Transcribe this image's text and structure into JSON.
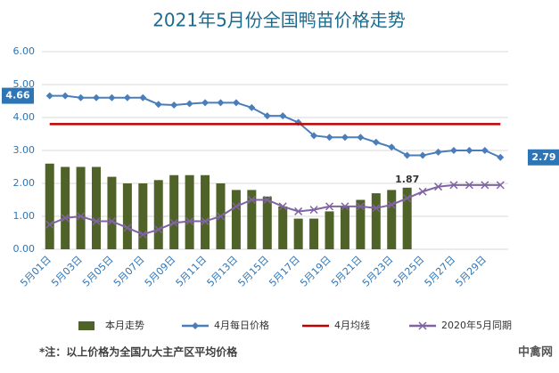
{
  "chart_data": {
    "type": "combo",
    "title": "2021年5月份全国鸭苗价格走势",
    "categories": [
      "5月01日",
      null,
      "5月03日",
      null,
      "5月05日",
      null,
      "5月07日",
      null,
      "5月09日",
      null,
      "5月11日",
      null,
      "5月13日",
      null,
      "5月15日",
      null,
      "5月17日",
      null,
      "5月19日",
      null,
      "5月21日",
      null,
      "5月23日",
      null,
      "5月25日",
      null,
      "5月27日",
      null,
      "5月29日",
      null
    ],
    "ylim": [
      0,
      6
    ],
    "yticks": [
      {
        "value": 0,
        "label": "0.00"
      },
      {
        "value": 1,
        "label": "1.00"
      },
      {
        "value": 2,
        "label": "2.00"
      },
      {
        "value": 3,
        "label": "3.00"
      },
      {
        "value": 4,
        "label": "4.00"
      },
      {
        "value": 5,
        "label": "5.00"
      },
      {
        "value": 6,
        "label": "6.00"
      }
    ],
    "grid": true,
    "series": [
      {
        "name": "本月走势",
        "type": "bar",
        "color": "#4f6228",
        "values": [
          2.6,
          2.5,
          2.5,
          2.5,
          2.2,
          2.0,
          2.0,
          2.1,
          2.25,
          2.25,
          2.25,
          2.0,
          1.8,
          1.8,
          1.6,
          1.3,
          0.93,
          0.93,
          1.15,
          1.3,
          1.5,
          1.7,
          1.8,
          1.87,
          null,
          null,
          null,
          null,
          null,
          null
        ],
        "value_labels": [
          null,
          null,
          null,
          null,
          null,
          null,
          null,
          null,
          null,
          null,
          null,
          null,
          null,
          null,
          null,
          null,
          null,
          null,
          null,
          null,
          null,
          null,
          null,
          "1.87",
          null,
          null,
          null,
          null,
          null,
          null
        ]
      },
      {
        "name": "4月每日价格",
        "type": "line",
        "marker": "diamond",
        "color": "#4a7ebb",
        "values": [
          4.66,
          4.66,
          4.6,
          4.6,
          4.6,
          4.6,
          4.6,
          4.4,
          4.38,
          4.42,
          4.45,
          4.45,
          4.45,
          4.3,
          4.05,
          4.05,
          3.85,
          3.45,
          3.4,
          3.4,
          3.4,
          3.25,
          3.1,
          2.85,
          2.85,
          2.95,
          3.0,
          3.0,
          3.0,
          2.79
        ],
        "value_labels": [
          "4.66",
          null,
          null,
          null,
          null,
          null,
          null,
          null,
          null,
          null,
          null,
          null,
          null,
          null,
          null,
          null,
          null,
          null,
          null,
          null,
          null,
          null,
          null,
          null,
          null,
          null,
          null,
          null,
          null,
          "2.79"
        ]
      },
      {
        "name": "4月均线",
        "type": "line",
        "marker": "none",
        "color": "#c00000",
        "values": [
          3.8,
          3.8,
          3.8,
          3.8,
          3.8,
          3.8,
          3.8,
          3.8,
          3.8,
          3.8,
          3.8,
          3.8,
          3.8,
          3.8,
          3.8,
          3.8,
          3.8,
          3.8,
          3.8,
          3.8,
          3.8,
          3.8,
          3.8,
          3.8,
          3.8,
          3.8,
          3.8,
          3.8,
          3.8,
          3.8
        ]
      },
      {
        "name": "2020年5月同期",
        "type": "line",
        "marker": "x",
        "color": "#8064a2",
        "values": [
          0.75,
          0.95,
          1.0,
          0.85,
          0.85,
          0.65,
          0.45,
          0.6,
          0.8,
          0.85,
          0.85,
          1.0,
          1.3,
          1.5,
          1.5,
          1.3,
          1.15,
          1.2,
          1.3,
          1.3,
          1.3,
          1.25,
          1.35,
          1.55,
          1.75,
          1.9,
          1.95,
          1.95,
          1.95,
          1.95
        ]
      }
    ],
    "footnote": "*注：以上价格为全国九大主产区平均价格",
    "watermark": "中禽网"
  }
}
